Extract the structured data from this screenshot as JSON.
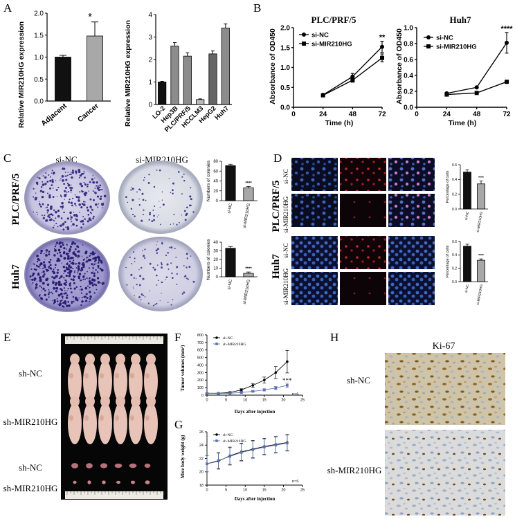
{
  "panel_letters": [
    "A",
    "B",
    "C",
    "D",
    "E",
    "F",
    "G",
    "H"
  ],
  "panelA": {
    "left": {
      "ylabel": "Relative MIR210HG expression",
      "star": "*",
      "chart_data": {
        "type": "bar",
        "categories": [
          "Adjacent",
          "Cancer"
        ],
        "values": [
          1.0,
          1.48
        ],
        "errors": [
          0.04,
          0.32
        ],
        "ylim": [
          0,
          2.0
        ],
        "yticks": [
          "0.0",
          "0.5",
          "1.0",
          "1.5",
          "2.0"
        ],
        "colors": [
          "#111111",
          "#a8a8a8"
        ]
      }
    },
    "right": {
      "ylabel": "Relative MIR210HG expression",
      "chart_data": {
        "type": "bar",
        "categories": [
          "LO-2",
          "Hep3B",
          "PLC/PRF/5",
          "HCCLM3",
          "HepG2",
          "Huh7"
        ],
        "values": [
          1.0,
          2.6,
          2.15,
          0.22,
          2.25,
          3.4
        ],
        "errors": [
          0.03,
          0.15,
          0.15,
          0.03,
          0.13,
          0.18
        ],
        "ylim": [
          0,
          4
        ],
        "yticks": [
          "0",
          "1",
          "2",
          "3",
          "4"
        ],
        "colors": [
          "#111111",
          "#8c8c8c",
          "#8c8c8c",
          "#bbbbbb",
          "#666666",
          "#8c8c8c"
        ]
      }
    }
  },
  "panelB": {
    "ylabel": "Absorbance of OD450",
    "xlabel": "Time (h)",
    "legend": [
      "si-NC",
      "si-MIR210HG"
    ],
    "charts": [
      {
        "title": "PLC/PRF/5",
        "star": "**",
        "chart_data": {
          "type": "line",
          "x": [
            24,
            48,
            72
          ],
          "xticks": [
            "0",
            "24",
            "48",
            "72"
          ],
          "xlim": [
            0,
            72
          ],
          "yticks": [
            "0.0",
            "0.5",
            "1.0",
            "1.5",
            "2.0"
          ],
          "ylim": [
            0,
            2.0
          ],
          "series": [
            {
              "name": "si-NC",
              "values": [
                0.31,
                0.77,
                1.52
              ],
              "errors": [
                0.02,
                0.08,
                0.14
              ]
            },
            {
              "name": "si-MIR210HG",
              "values": [
                0.3,
                0.68,
                1.24
              ],
              "errors": [
                0.02,
                0.05,
                0.1
              ]
            }
          ]
        }
      },
      {
        "title": "Huh7",
        "star": "****",
        "chart_data": {
          "type": "line",
          "x": [
            24,
            48,
            72
          ],
          "xticks": [
            "0",
            "24",
            "48",
            "72"
          ],
          "xlim": [
            0,
            72
          ],
          "yticks": [
            "0.0",
            "0.2",
            "0.4",
            "0.6",
            "0.8",
            "1.0"
          ],
          "ylim": [
            0,
            1.0
          ],
          "series": [
            {
              "name": "si-NC",
              "values": [
                0.175,
                0.25,
                0.81
              ],
              "errors": [
                0.01,
                0.01,
                0.13
              ]
            },
            {
              "name": "si-MIR210HG",
              "values": [
                0.16,
                0.18,
                0.32
              ],
              "errors": [
                0.01,
                0.01,
                0.01
              ]
            }
          ]
        }
      }
    ]
  },
  "panelC": {
    "col_labels": [
      "si-NC",
      "si-MIR210HG"
    ],
    "row_labels": [
      "PLC/PRF/5",
      "Huh7"
    ],
    "bar_ylabel": "Numbers of colonies",
    "bars": [
      {
        "star": "****",
        "chart_data": {
          "type": "bar",
          "categories": [
            "si-NC",
            "si-MIR210HG"
          ],
          "values": [
            71,
            26
          ],
          "errors": [
            3,
            3
          ],
          "ylim": [
            0,
            80
          ],
          "yticks": [
            "0",
            "20",
            "40",
            "60",
            "80"
          ]
        }
      },
      {
        "star": "****",
        "chart_data": {
          "type": "bar",
          "categories": [
            "si-NC",
            "si-MIR210HG"
          ],
          "values": [
            33,
            4
          ],
          "errors": [
            2,
            1.5
          ],
          "ylim": [
            0,
            40
          ],
          "yticks": [
            "0",
            "10",
            "20",
            "30",
            "40"
          ]
        }
      }
    ]
  },
  "panelD": {
    "row_labels": [
      "PLC/PRF/5",
      "Huh7"
    ],
    "sub_labels": [
      "si-NC",
      "si-MIR210HG",
      "si-NC",
      "si-MIR210HG"
    ],
    "bar_ylabel": "Percentage of cells",
    "bars": [
      {
        "star": "****",
        "chart_data": {
          "type": "bar",
          "categories": [
            "si-NC",
            "si-MIR210HG"
          ],
          "values": [
            0.5,
            0.34
          ],
          "errors": [
            0.03,
            0.04
          ],
          "ylim": [
            0,
            0.6
          ],
          "yticks": [
            "0.0",
            "0.2",
            "0.4",
            "0.6"
          ]
        }
      },
      {
        "star": "****",
        "chart_data": {
          "type": "bar",
          "categories": [
            "si-NC",
            "si-MIR210HG"
          ],
          "values": [
            0.53,
            0.32
          ],
          "errors": [
            0.03,
            0.02
          ],
          "ylim": [
            0,
            0.6
          ],
          "yticks": [
            "0.0",
            "0.2",
            "0.4",
            "0.6"
          ]
        }
      }
    ]
  },
  "panelE": {
    "labels": [
      "sh-NC",
      "sh-MIR210HG",
      "sh-NC",
      "sh-MIR210HG"
    ]
  },
  "panelF": {
    "ylabel": "Tumor volumes (mm³)",
    "xlabel": "Days after injection",
    "legend": [
      "sh-NC",
      "sh-MIR210HG"
    ],
    "n_note": "n=6",
    "star": "***",
    "chart_data": {
      "type": "line",
      "x": [
        0,
        3,
        6,
        9,
        12,
        15,
        18,
        21
      ],
      "xticks": [
        "0",
        "5",
        "10",
        "15",
        "20",
        "25"
      ],
      "xlim": [
        0,
        25
      ],
      "yticks": [
        "0",
        "100",
        "200",
        "300",
        "400",
        "500",
        "600",
        "700",
        "800"
      ],
      "ylim": [
        0,
        800
      ],
      "series": [
        {
          "name": "sh-NC",
          "values": [
            25,
            25,
            35,
            70,
            130,
            200,
            300,
            445
          ],
          "errors": [
            5,
            5,
            10,
            15,
            25,
            40,
            80,
            150
          ]
        },
        {
          "name": "sh-MIR210HG",
          "values": [
            25,
            22,
            25,
            35,
            50,
            70,
            95,
            130
          ],
          "errors": [
            5,
            5,
            5,
            8,
            10,
            15,
            20,
            30
          ]
        }
      ]
    }
  },
  "panelG": {
    "ylabel": "Mice body weight (g)",
    "xlabel": "Days after injection",
    "legend": [
      "sh-NC",
      "sh-MIR210HG"
    ],
    "n_note": "n=6",
    "chart_data": {
      "type": "line",
      "x": [
        0,
        3,
        6,
        9,
        12,
        15,
        18,
        21
      ],
      "xticks": [
        "0",
        "5",
        "10",
        "15",
        "20",
        "25"
      ],
      "xlim": [
        0,
        25
      ],
      "yticks": [
        "18",
        "20",
        "22",
        "24",
        "26"
      ],
      "ylim": [
        18,
        26
      ],
      "series": [
        {
          "name": "sh-NC",
          "values": [
            21.2,
            21.6,
            22.4,
            23.0,
            23.4,
            23.8,
            24.1,
            24.4
          ],
          "errors": [
            1.2,
            1.2,
            1.3,
            1.3,
            1.3,
            1.2,
            1.2,
            1.2
          ]
        },
        {
          "name": "sh-MIR210HG",
          "values": [
            21.2,
            21.7,
            22.3,
            22.9,
            23.3,
            23.7,
            24.0,
            24.3
          ],
          "errors": [
            1.2,
            1.2,
            1.3,
            1.3,
            1.3,
            1.2,
            1.2,
            1.2
          ]
        }
      ]
    }
  },
  "panelH": {
    "title": "Ki-67",
    "labels": [
      "sh-NC",
      "sh-MIR210HG"
    ]
  }
}
